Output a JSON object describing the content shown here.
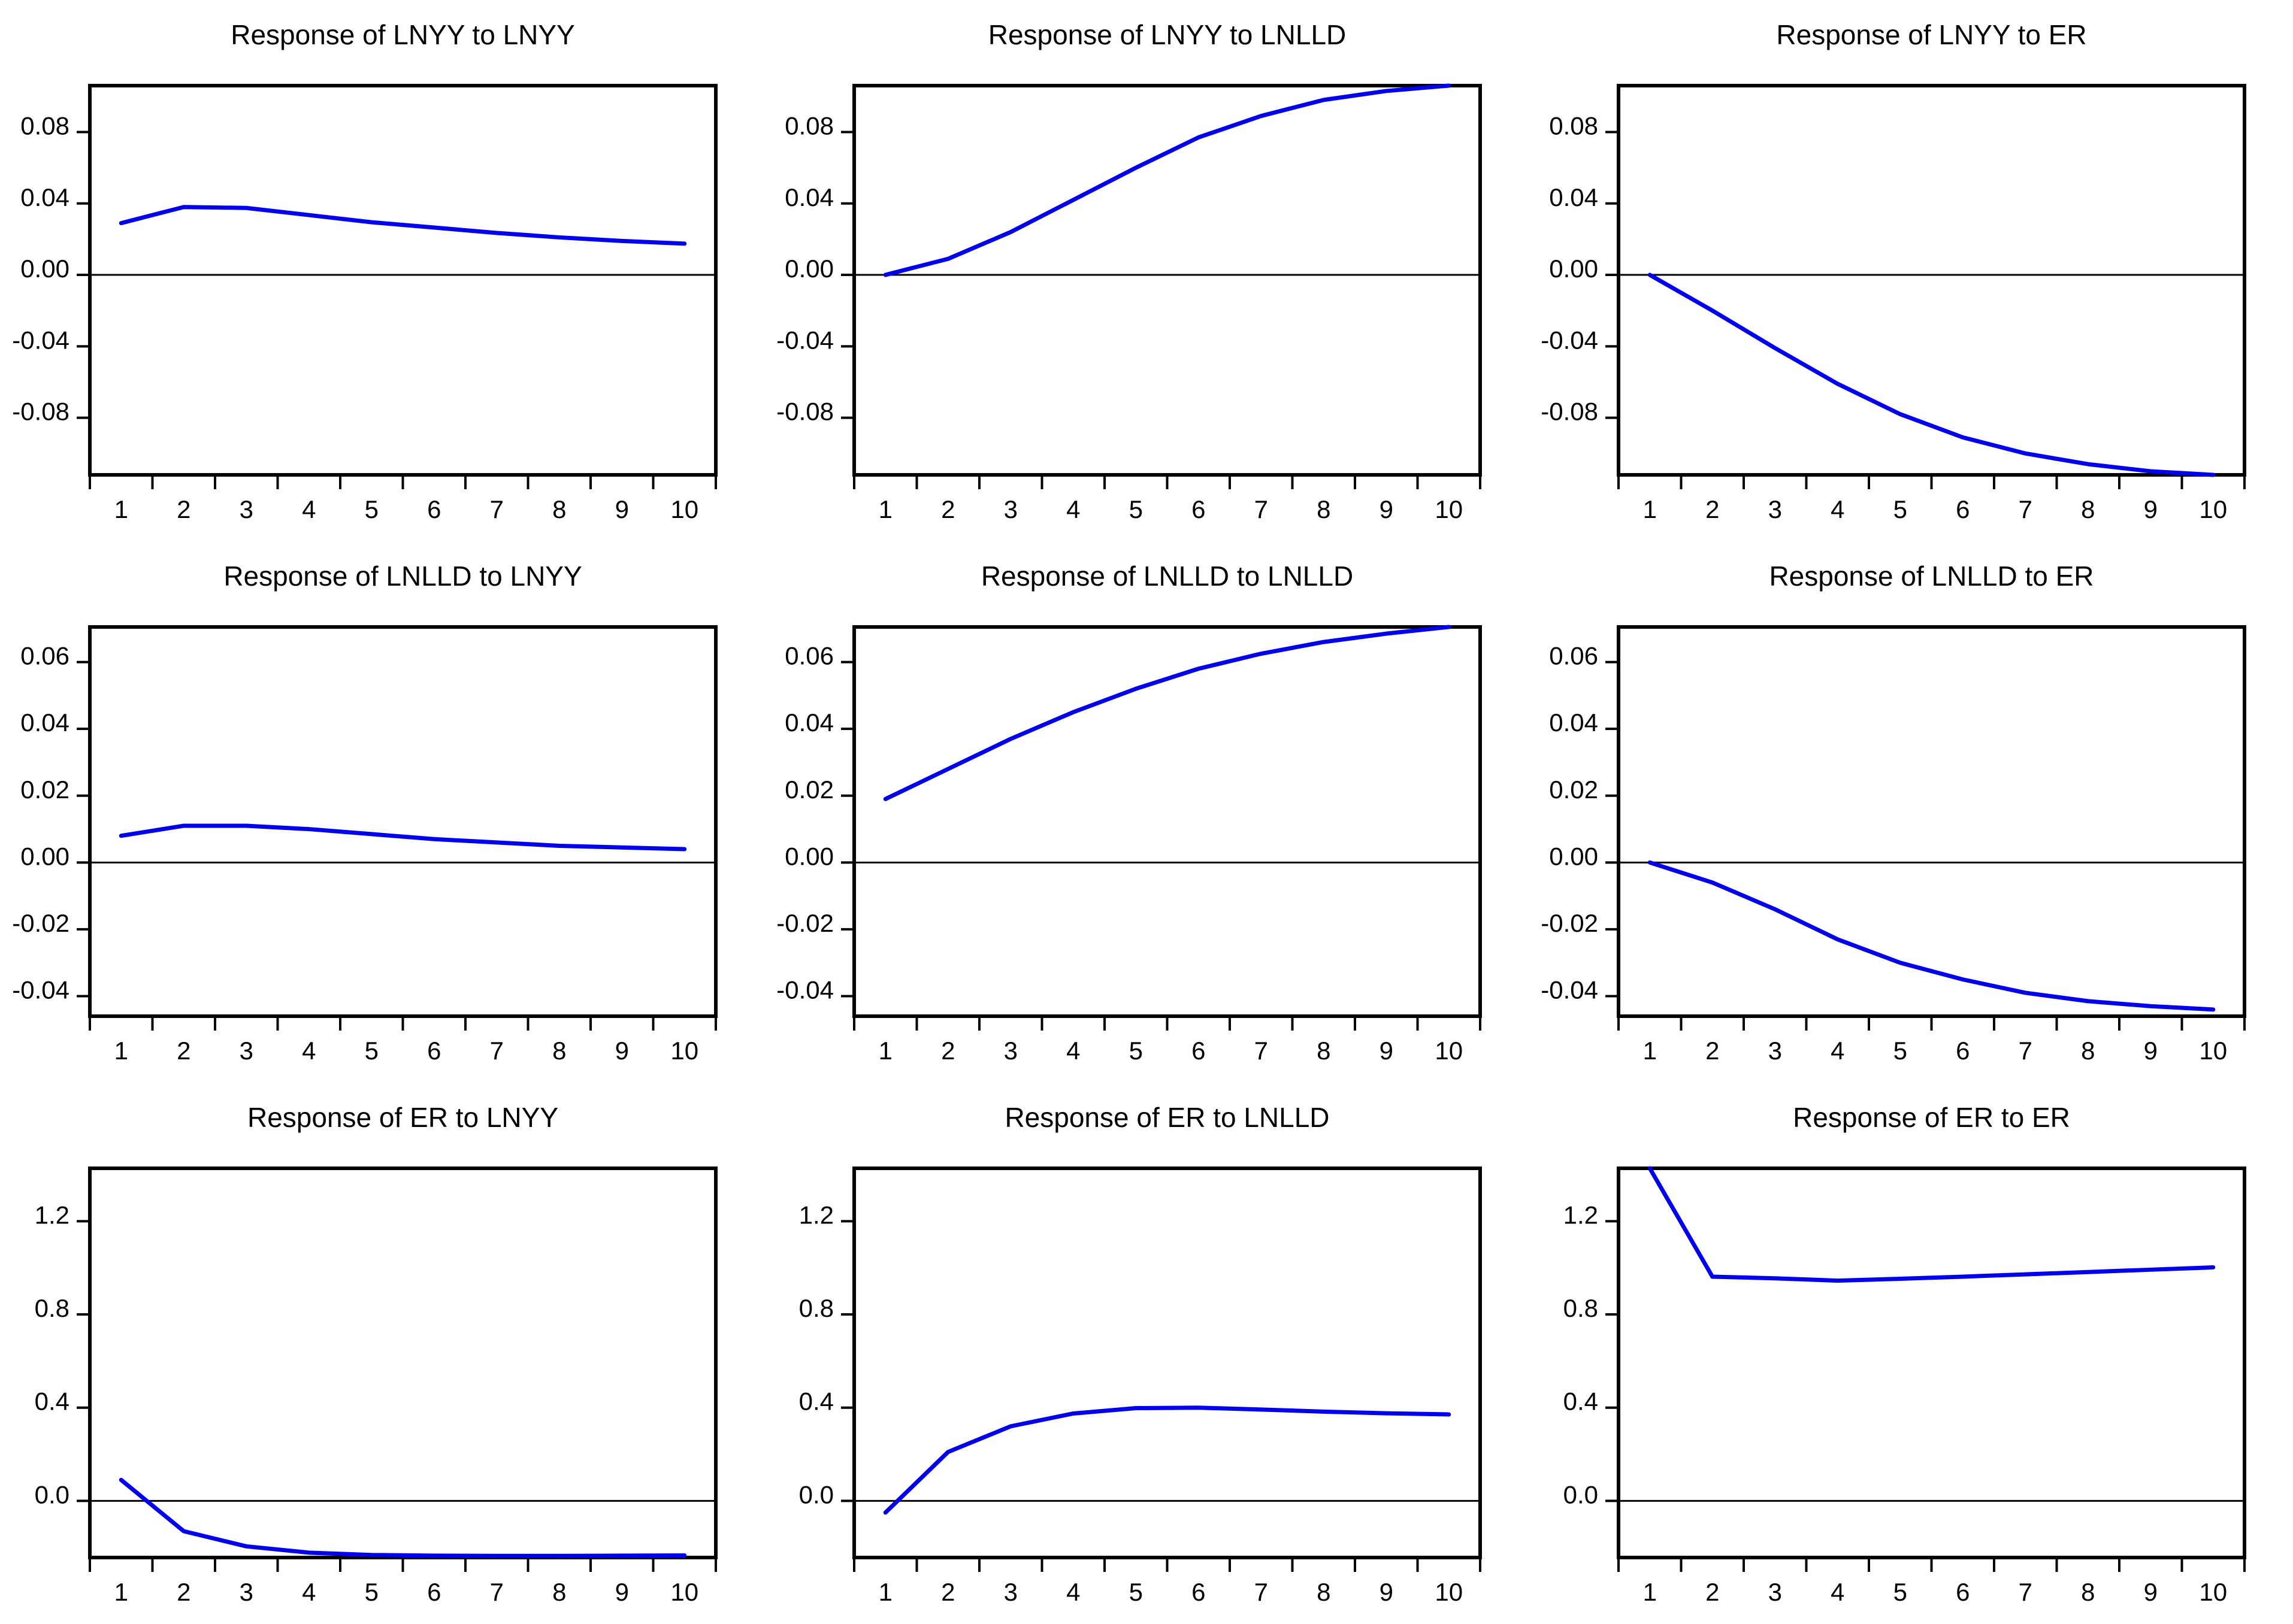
{
  "figure": {
    "background_color": "#ffffff",
    "line_color": "#0000ee",
    "axis_color": "#000000",
    "zero_line_color": "#000000"
  },
  "x_axis": {
    "labels": [
      "1",
      "2",
      "3",
      "4",
      "5",
      "6",
      "7",
      "8",
      "9",
      "10"
    ]
  },
  "chart_data": [
    {
      "type": "line",
      "title": "Response of LNYY to LNYY",
      "x": [
        1,
        2,
        3,
        4,
        5,
        6,
        7,
        8,
        9,
        10
      ],
      "values": [
        0.029,
        0.038,
        0.0375,
        0.0335,
        0.0295,
        0.0265,
        0.0235,
        0.021,
        0.019,
        0.0175
      ],
      "y_tick_values": [
        0.08,
        0.04,
        0.0,
        -0.04,
        -0.08
      ],
      "y_tick_labels": [
        "0.08",
        "0.04",
        "0.00",
        "-0.04",
        "-0.08"
      ],
      "ylim": [
        -0.112,
        0.106
      ],
      "zero_line": true,
      "grid": false,
      "legend": "none"
    },
    {
      "type": "line",
      "title": "Response of LNYY to LNLLD",
      "x": [
        1,
        2,
        3,
        4,
        5,
        6,
        7,
        8,
        9,
        10
      ],
      "values": [
        0.0,
        0.009,
        0.024,
        0.042,
        0.06,
        0.077,
        0.089,
        0.098,
        0.103,
        0.106
      ],
      "y_tick_values": [
        0.08,
        0.04,
        0.0,
        -0.04,
        -0.08
      ],
      "y_tick_labels": [
        "0.08",
        "0.04",
        "0.00",
        "-0.04",
        "-0.08"
      ],
      "ylim": [
        -0.112,
        0.106
      ],
      "zero_line": true,
      "grid": false,
      "legend": "none"
    },
    {
      "type": "line",
      "title": "Response of LNYY to ER",
      "x": [
        1,
        2,
        3,
        4,
        5,
        6,
        7,
        8,
        9,
        10
      ],
      "values": [
        0.0,
        -0.02,
        -0.041,
        -0.061,
        -0.078,
        -0.091,
        -0.1,
        -0.106,
        -0.11,
        -0.112
      ],
      "y_tick_values": [
        0.08,
        0.04,
        0.0,
        -0.04,
        -0.08
      ],
      "y_tick_labels": [
        "0.08",
        "0.04",
        "0.00",
        "-0.04",
        "-0.08"
      ],
      "ylim": [
        -0.112,
        0.106
      ],
      "zero_line": true,
      "grid": false,
      "legend": "none"
    },
    {
      "type": "line",
      "title": "Response of LNLLD to LNYY",
      "x": [
        1,
        2,
        3,
        4,
        5,
        6,
        7,
        8,
        9,
        10
      ],
      "values": [
        0.008,
        0.011,
        0.011,
        0.01,
        0.0085,
        0.007,
        0.006,
        0.005,
        0.0045,
        0.004
      ],
      "y_tick_values": [
        0.06,
        0.04,
        0.02,
        0.0,
        -0.02,
        -0.04
      ],
      "y_tick_labels": [
        "0.06",
        "0.04",
        "0.02",
        "0.00",
        "-0.02",
        "-0.04"
      ],
      "ylim": [
        -0.046,
        0.0705
      ],
      "zero_line": true,
      "grid": false,
      "legend": "none"
    },
    {
      "type": "line",
      "title": "Response of LNLLD to LNLLD",
      "x": [
        1,
        2,
        3,
        4,
        5,
        6,
        7,
        8,
        9,
        10
      ],
      "values": [
        0.019,
        0.028,
        0.037,
        0.045,
        0.052,
        0.058,
        0.0625,
        0.066,
        0.0685,
        0.0705
      ],
      "y_tick_values": [
        0.06,
        0.04,
        0.02,
        0.0,
        -0.02,
        -0.04
      ],
      "y_tick_labels": [
        "0.06",
        "0.04",
        "0.02",
        "0.00",
        "-0.02",
        "-0.04"
      ],
      "ylim": [
        -0.046,
        0.0705
      ],
      "zero_line": true,
      "grid": false,
      "legend": "none"
    },
    {
      "type": "line",
      "title": "Response of LNLLD to ER",
      "x": [
        1,
        2,
        3,
        4,
        5,
        6,
        7,
        8,
        9,
        10
      ],
      "values": [
        0.0,
        -0.006,
        -0.014,
        -0.023,
        -0.03,
        -0.035,
        -0.039,
        -0.0415,
        -0.043,
        -0.044
      ],
      "y_tick_values": [
        0.06,
        0.04,
        0.02,
        0.0,
        -0.02,
        -0.04
      ],
      "y_tick_labels": [
        "0.06",
        "0.04",
        "0.02",
        "0.00",
        "-0.02",
        "-0.04"
      ],
      "ylim": [
        -0.046,
        0.0705
      ],
      "zero_line": true,
      "grid": false,
      "legend": "none"
    },
    {
      "type": "line",
      "title": "Response of ER to LNYY",
      "x": [
        1,
        2,
        3,
        4,
        5,
        6,
        7,
        8,
        9,
        10
      ],
      "values": [
        0.09,
        -0.13,
        -0.195,
        -0.222,
        -0.232,
        -0.235,
        -0.236,
        -0.236,
        -0.235,
        -0.234
      ],
      "y_tick_values": [
        1.2,
        0.8,
        0.4,
        0.0
      ],
      "y_tick_labels": [
        "1.2",
        "0.8",
        "0.4",
        "0.0"
      ],
      "ylim": [
        -0.243,
        1.427
      ],
      "zero_line": true,
      "grid": false,
      "legend": "none"
    },
    {
      "type": "line",
      "title": "Response of ER to LNLLD",
      "x": [
        1,
        2,
        3,
        4,
        5,
        6,
        7,
        8,
        9,
        10
      ],
      "values": [
        -0.05,
        0.21,
        0.32,
        0.375,
        0.398,
        0.4,
        0.392,
        0.383,
        0.376,
        0.371
      ],
      "y_tick_values": [
        1.2,
        0.8,
        0.4,
        0.0
      ],
      "y_tick_labels": [
        "1.2",
        "0.8",
        "0.4",
        "0.0"
      ],
      "ylim": [
        -0.243,
        1.427
      ],
      "zero_line": true,
      "grid": false,
      "legend": "none"
    },
    {
      "type": "line",
      "title": "Response of ER to ER",
      "x": [
        1,
        2,
        3,
        4,
        5,
        6,
        7,
        8,
        9,
        10
      ],
      "values": [
        1.427,
        0.962,
        0.955,
        0.945,
        0.953,
        0.962,
        0.972,
        0.982,
        0.992,
        1.002
      ],
      "y_tick_values": [
        1.2,
        0.8,
        0.4,
        0.0
      ],
      "y_tick_labels": [
        "1.2",
        "0.8",
        "0.4",
        "0.0"
      ],
      "ylim": [
        -0.243,
        1.427
      ],
      "zero_line": true,
      "grid": false,
      "legend": "none"
    }
  ]
}
